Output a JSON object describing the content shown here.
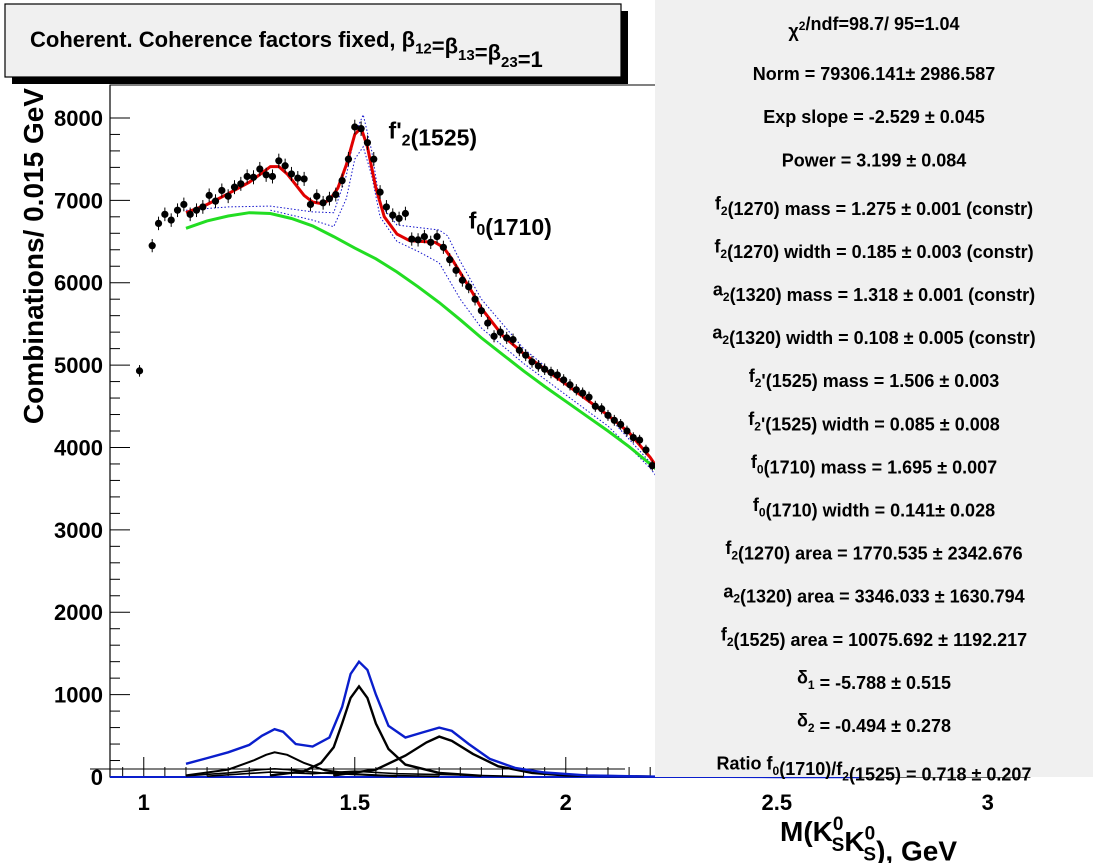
{
  "chart_data": {
    "type": "scatter",
    "title": "Coherent. Coherence factors fixed, β12=β13=β23=1",
    "title_parts": [
      {
        "t": "Coherent. Coherence factors fixed, β"
      },
      {
        "t": "12",
        "sub": true
      },
      {
        "t": "=β"
      },
      {
        "t": "13",
        "sub": true
      },
      {
        "t": "=β"
      },
      {
        "t": "23",
        "sub": true
      },
      {
        "t": "=1"
      }
    ],
    "ylabel": "Combinations/ 0.015 GeV",
    "xlabel_parts": [
      {
        "t": "M(K"
      },
      {
        "t": "S",
        "sub": true,
        "sup": "0"
      },
      {
        "t": "K"
      },
      {
        "t": "S",
        "sub": true,
        "sup": "0"
      },
      {
        "t": "), GeV"
      }
    ],
    "xlim": [
      0.92,
      3.1
    ],
    "ylim": [
      0,
      8400
    ],
    "x_ticks": [
      "1",
      "1.5",
      "2",
      "2.5",
      "3"
    ],
    "y_ticks": [
      "0",
      "1000",
      "2000",
      "3000",
      "4000",
      "5000",
      "6000",
      "7000",
      "8000"
    ],
    "peak_labels": [
      {
        "parts": [
          {
            "t": "f'"
          },
          {
            "t": "2",
            "sub": true
          },
          {
            "t": "(1525)"
          }
        ],
        "x": 1.58,
        "y": 7750
      },
      {
        "parts": [
          {
            "t": "f"
          },
          {
            "t": "0",
            "sub": true
          },
          {
            "t": "(1710)"
          }
        ],
        "x": 1.77,
        "y": 6660
      }
    ],
    "data_points": [
      [
        0.99,
        4930
      ],
      [
        1.02,
        6450
      ],
      [
        1.035,
        6720
      ],
      [
        1.05,
        6830
      ],
      [
        1.065,
        6760
      ],
      [
        1.08,
        6880
      ],
      [
        1.095,
        6950
      ],
      [
        1.11,
        6830
      ],
      [
        1.125,
        6880
      ],
      [
        1.14,
        6920
      ],
      [
        1.155,
        7060
      ],
      [
        1.17,
        6990
      ],
      [
        1.185,
        7120
      ],
      [
        1.2,
        7050
      ],
      [
        1.215,
        7160
      ],
      [
        1.23,
        7200
      ],
      [
        1.245,
        7290
      ],
      [
        1.26,
        7280
      ],
      [
        1.275,
        7380
      ],
      [
        1.29,
        7310
      ],
      [
        1.305,
        7290
      ],
      [
        1.32,
        7480
      ],
      [
        1.335,
        7420
      ],
      [
        1.35,
        7320
      ],
      [
        1.365,
        7270
      ],
      [
        1.38,
        7260
      ],
      [
        1.395,
        6950
      ],
      [
        1.41,
        7050
      ],
      [
        1.425,
        6970
      ],
      [
        1.44,
        7020
      ],
      [
        1.455,
        7070
      ],
      [
        1.47,
        7240
      ],
      [
        1.485,
        7500
      ],
      [
        1.5,
        7890
      ],
      [
        1.515,
        7870
      ],
      [
        1.53,
        7700
      ],
      [
        1.545,
        7500
      ],
      [
        1.56,
        7100
      ],
      [
        1.575,
        6920
      ],
      [
        1.59,
        6820
      ],
      [
        1.605,
        6780
      ],
      [
        1.62,
        6840
      ],
      [
        1.635,
        6530
      ],
      [
        1.65,
        6520
      ],
      [
        1.665,
        6560
      ],
      [
        1.68,
        6490
      ],
      [
        1.695,
        6560
      ],
      [
        1.71,
        6430
      ],
      [
        1.725,
        6280
      ],
      [
        1.74,
        6150
      ],
      [
        1.755,
        6030
      ],
      [
        1.77,
        5950
      ],
      [
        1.785,
        5800
      ],
      [
        1.8,
        5660
      ],
      [
        1.815,
        5510
      ],
      [
        1.83,
        5350
      ],
      [
        1.845,
        5400
      ],
      [
        1.86,
        5330
      ],
      [
        1.875,
        5310
      ],
      [
        1.89,
        5180
      ],
      [
        1.905,
        5120
      ],
      [
        1.92,
        5040
      ],
      [
        1.935,
        4990
      ],
      [
        1.95,
        4950
      ],
      [
        1.965,
        4910
      ],
      [
        1.98,
        4880
      ],
      [
        1.995,
        4820
      ],
      [
        2.01,
        4760
      ],
      [
        2.025,
        4700
      ],
      [
        2.04,
        4660
      ],
      [
        2.055,
        4610
      ],
      [
        2.07,
        4500
      ],
      [
        2.085,
        4470
      ],
      [
        2.1,
        4390
      ],
      [
        2.115,
        4330
      ],
      [
        2.13,
        4280
      ],
      [
        2.145,
        4200
      ],
      [
        2.16,
        4120
      ],
      [
        2.175,
        4090
      ],
      [
        2.19,
        3970
      ],
      [
        2.205,
        3780
      ],
      [
        2.22,
        3870
      ]
    ],
    "total_fit": [
      [
        1.1,
        6850
      ],
      [
        1.15,
        6950
      ],
      [
        1.2,
        7080
      ],
      [
        1.25,
        7220
      ],
      [
        1.28,
        7330
      ],
      [
        1.3,
        7410
      ],
      [
        1.32,
        7410
      ],
      [
        1.34,
        7320
      ],
      [
        1.36,
        7190
      ],
      [
        1.38,
        7060
      ],
      [
        1.4,
        6980
      ],
      [
        1.42,
        6960
      ],
      [
        1.44,
        7000
      ],
      [
        1.46,
        7150
      ],
      [
        1.48,
        7430
      ],
      [
        1.5,
        7800
      ],
      [
        1.515,
        7880
      ],
      [
        1.53,
        7650
      ],
      [
        1.55,
        7150
      ],
      [
        1.57,
        6800
      ],
      [
        1.6,
        6590
      ],
      [
        1.63,
        6510
      ],
      [
        1.66,
        6500
      ],
      [
        1.69,
        6490
      ],
      [
        1.71,
        6430
      ],
      [
        1.73,
        6290
      ],
      [
        1.75,
        6120
      ],
      [
        1.78,
        5870
      ],
      [
        1.8,
        5690
      ],
      [
        1.85,
        5360
      ],
      [
        1.9,
        5140
      ],
      [
        1.95,
        4950
      ],
      [
        2.0,
        4770
      ],
      [
        2.05,
        4580
      ],
      [
        2.1,
        4390
      ],
      [
        2.15,
        4180
      ],
      [
        2.2,
        3880
      ],
      [
        2.225,
        3690
      ]
    ],
    "background_fit": [
      [
        1.1,
        6660
      ],
      [
        1.15,
        6750
      ],
      [
        1.2,
        6810
      ],
      [
        1.25,
        6850
      ],
      [
        1.3,
        6840
      ],
      [
        1.35,
        6780
      ],
      [
        1.4,
        6690
      ],
      [
        1.45,
        6560
      ],
      [
        1.5,
        6420
      ],
      [
        1.55,
        6290
      ],
      [
        1.6,
        6130
      ],
      [
        1.65,
        5950
      ],
      [
        1.7,
        5760
      ],
      [
        1.75,
        5550
      ],
      [
        1.8,
        5330
      ],
      [
        1.85,
        5130
      ],
      [
        1.9,
        4930
      ],
      [
        1.95,
        4740
      ],
      [
        2.0,
        4560
      ],
      [
        2.05,
        4380
      ],
      [
        2.1,
        4200
      ],
      [
        2.15,
        4010
      ],
      [
        2.2,
        3800
      ],
      [
        2.225,
        3690
      ]
    ],
    "band_upper": [
      [
        1.1,
        6880
      ],
      [
        1.2,
        6920
      ],
      [
        1.3,
        6930
      ],
      [
        1.4,
        6860
      ],
      [
        1.45,
        6850
      ],
      [
        1.48,
        7300
      ],
      [
        1.5,
        7800
      ],
      [
        1.52,
        8040
      ],
      [
        1.54,
        7600
      ],
      [
        1.56,
        6950
      ],
      [
        1.6,
        6700
      ],
      [
        1.65,
        6670
      ],
      [
        1.7,
        6640
      ],
      [
        1.72,
        6570
      ],
      [
        1.75,
        6260
      ],
      [
        1.8,
        5800
      ],
      [
        1.9,
        5200
      ],
      [
        2.0,
        4780
      ],
      [
        2.1,
        4380
      ],
      [
        2.2,
        3820
      ],
      [
        2.225,
        3630
      ]
    ],
    "band_lower": [
      [
        1.3,
        6880
      ],
      [
        1.4,
        6760
      ],
      [
        1.45,
        6680
      ],
      [
        1.48,
        7020
      ],
      [
        1.5,
        7500
      ],
      [
        1.52,
        7650
      ],
      [
        1.54,
        7300
      ],
      [
        1.56,
        6800
      ],
      [
        1.6,
        6500
      ],
      [
        1.65,
        6380
      ],
      [
        1.7,
        6240
      ],
      [
        1.75,
        5800
      ],
      [
        1.8,
        5450
      ],
      [
        1.9,
        5020
      ],
      [
        2.0,
        4640
      ],
      [
        2.1,
        4260
      ],
      [
        2.2,
        3750
      ],
      [
        2.225,
        3580
      ]
    ],
    "blue_component": [
      [
        1.1,
        160
      ],
      [
        1.15,
        230
      ],
      [
        1.2,
        300
      ],
      [
        1.25,
        390
      ],
      [
        1.28,
        500
      ],
      [
        1.31,
        580
      ],
      [
        1.33,
        550
      ],
      [
        1.36,
        400
      ],
      [
        1.4,
        370
      ],
      [
        1.44,
        480
      ],
      [
        1.47,
        850
      ],
      [
        1.49,
        1250
      ],
      [
        1.51,
        1400
      ],
      [
        1.53,
        1300
      ],
      [
        1.55,
        1000
      ],
      [
        1.58,
        620
      ],
      [
        1.62,
        480
      ],
      [
        1.66,
        540
      ],
      [
        1.7,
        600
      ],
      [
        1.73,
        560
      ],
      [
        1.77,
        400
      ],
      [
        1.82,
        220
      ],
      [
        1.88,
        110
      ],
      [
        1.95,
        55
      ],
      [
        2.05,
        20
      ],
      [
        2.2,
        5
      ],
      [
        2.5,
        0
      ],
      [
        2.7,
        0
      ]
    ],
    "black_f2prime": [
      [
        1.3,
        20
      ],
      [
        1.38,
        70
      ],
      [
        1.42,
        170
      ],
      [
        1.45,
        360
      ],
      [
        1.47,
        650
      ],
      [
        1.49,
        960
      ],
      [
        1.51,
        1100
      ],
      [
        1.53,
        960
      ],
      [
        1.55,
        650
      ],
      [
        1.58,
        340
      ],
      [
        1.62,
        150
      ],
      [
        1.7,
        50
      ],
      [
        1.8,
        15
      ]
    ],
    "black_f2": [
      [
        1.1,
        20
      ],
      [
        1.2,
        90
      ],
      [
        1.26,
        200
      ],
      [
        1.29,
        270
      ],
      [
        1.31,
        300
      ],
      [
        1.34,
        270
      ],
      [
        1.38,
        170
      ],
      [
        1.43,
        80
      ],
      [
        1.5,
        35
      ],
      [
        1.6,
        10
      ]
    ],
    "black_f0": [
      [
        1.45,
        20
      ],
      [
        1.55,
        90
      ],
      [
        1.62,
        260
      ],
      [
        1.67,
        420
      ],
      [
        1.7,
        490
      ],
      [
        1.73,
        440
      ],
      [
        1.78,
        280
      ],
      [
        1.84,
        130
      ],
      [
        1.92,
        50
      ],
      [
        2.0,
        20
      ],
      [
        2.2,
        5
      ]
    ],
    "black_a2": [
      [
        1.1,
        15
      ],
      [
        1.2,
        50
      ],
      [
        1.28,
        90
      ],
      [
        1.31,
        100
      ],
      [
        1.34,
        90
      ],
      [
        1.42,
        50
      ],
      [
        1.55,
        20
      ],
      [
        1.7,
        8
      ]
    ],
    "black_interf": [
      [
        1.15,
        10
      ],
      [
        1.3,
        60
      ],
      [
        1.4,
        40
      ],
      [
        1.5,
        70
      ],
      [
        1.6,
        40
      ],
      [
        1.7,
        30
      ],
      [
        1.9,
        5
      ]
    ],
    "stats": [
      [
        {
          "t": "χ"
        },
        {
          "t": "2",
          "sup": true
        },
        {
          "t": "/ndf=98.7/ 95=1.04"
        }
      ],
      [
        {
          "t": "Norm = 79306.141± 2986.587"
        }
      ],
      [
        {
          "t": "Exp slope = -2.529 ± 0.045"
        }
      ],
      [
        {
          "t": "Power = 3.199 ± 0.084"
        }
      ],
      [
        {
          "t": "f"
        },
        {
          "t": "2",
          "sub": true
        },
        {
          "t": "(1270) mass = 1.275 ± 0.001  (constr)"
        }
      ],
      [
        {
          "t": "f"
        },
        {
          "t": "2",
          "sub": true
        },
        {
          "t": "(1270) width = 0.185 ± 0.003  (constr)"
        }
      ],
      [
        {
          "t": "a"
        },
        {
          "t": "2",
          "sub": true
        },
        {
          "t": "(1320) mass = 1.318 ± 0.001  (constr)"
        }
      ],
      [
        {
          "t": "a"
        },
        {
          "t": "2",
          "sub": true
        },
        {
          "t": "(1320) width = 0.108 ± 0.005  (constr)"
        }
      ],
      [
        {
          "t": "f"
        },
        {
          "t": "2",
          "sub": true
        },
        {
          "t": "'(1525) mass = 1.506 ± 0.003"
        }
      ],
      [
        {
          "t": "f"
        },
        {
          "t": "2",
          "sub": true
        },
        {
          "t": "'(1525) width = 0.085 ± 0.008"
        }
      ],
      [
        {
          "t": "f"
        },
        {
          "t": "0",
          "sub": true
        },
        {
          "t": "(1710) mass = 1.695 ± 0.007"
        }
      ],
      [
        {
          "t": "f"
        },
        {
          "t": "0",
          "sub": true
        },
        {
          "t": "(1710) width = 0.141± 0.028"
        }
      ],
      [
        {
          "t": "f"
        },
        {
          "t": "2",
          "sub": true
        },
        {
          "t": "(1270) area = 1770.535 ± 2342.676"
        }
      ],
      [
        {
          "t": "a"
        },
        {
          "t": "2",
          "sub": true
        },
        {
          "t": "(1320) area = 3346.033 ± 1630.794"
        }
      ],
      [
        {
          "t": "f"
        },
        {
          "t": "2",
          "sub": true
        },
        {
          "t": "(1525) area = 10075.692 ± 1192.217"
        }
      ],
      [
        {
          "t": "δ"
        },
        {
          "t": "1",
          "sub": true
        },
        {
          "t": " = -5.788 ± 0.515"
        }
      ],
      [
        {
          "t": "δ"
        },
        {
          "t": "2",
          "sub": true
        },
        {
          "t": " = -0.494 ± 0.278"
        }
      ],
      [
        {
          "t": "Ratio f"
        },
        {
          "t": "0",
          "sub": true
        },
        {
          "t": "(1710)/f"
        },
        {
          "t": "2",
          "sub": true
        },
        {
          "t": "(1525) = 0.718 ± 0.207"
        }
      ]
    ],
    "grid": false,
    "legend": "none",
    "colors": {
      "total_fit": "#e00000",
      "background_fit": "#22dd22",
      "band": "#1111cc",
      "blue_component": "#0a1ecc",
      "black_components": "#000000",
      "data": "#000000",
      "stats_panel": "#f0f0f0"
    }
  }
}
